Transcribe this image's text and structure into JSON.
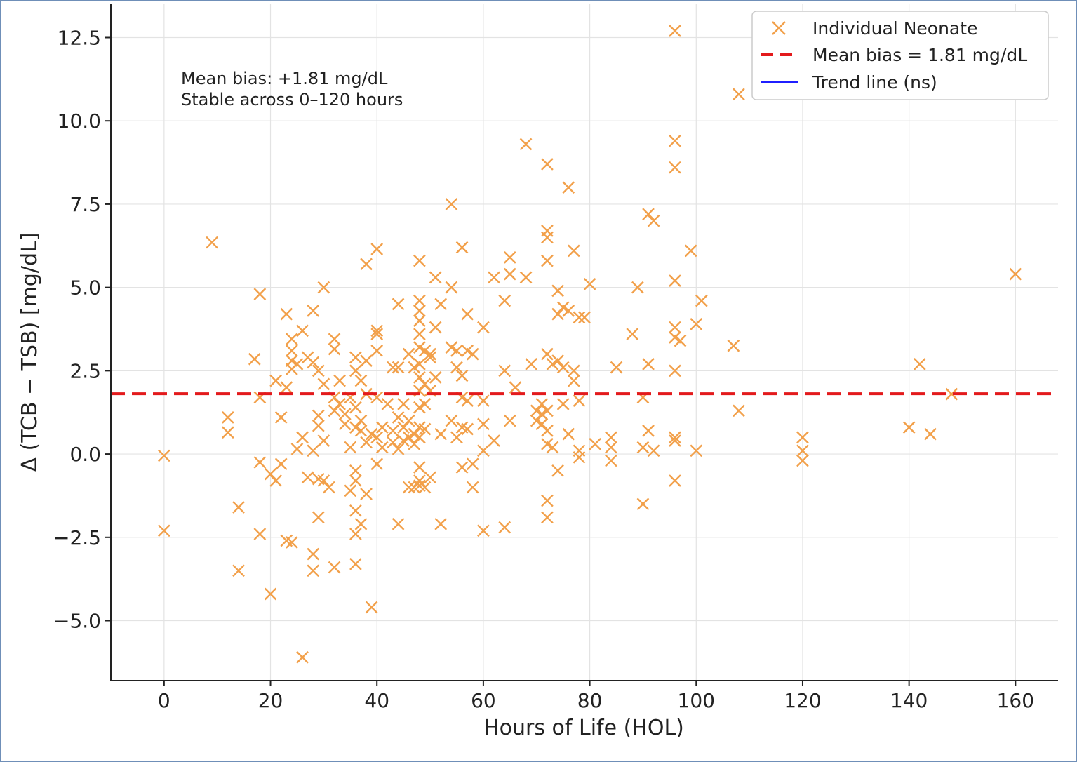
{
  "chart_data": {
    "type": "scatter",
    "title": "",
    "xlabel": "Hours of Life (HOL)",
    "ylabel": "Δ (TCB − TSB) [mg/dL]",
    "xlim": [
      -10,
      168
    ],
    "ylim": [
      -6.8,
      13.5
    ],
    "xticks": [
      0,
      20,
      40,
      60,
      80,
      100,
      120,
      140,
      160
    ],
    "xtick_labels": [
      "0",
      "20",
      "40",
      "60",
      "80",
      "100",
      "120",
      "140",
      "160"
    ],
    "yticks": [
      -5.0,
      -2.5,
      0.0,
      2.5,
      5.0,
      7.5,
      10.0,
      12.5
    ],
    "ytick_labels": [
      "−5.0",
      "−2.5",
      "0.0",
      "2.5",
      "5.0",
      "7.5",
      "10.0",
      "12.5"
    ],
    "grid": true,
    "mean_bias": 1.81,
    "annotation": [
      "Mean bias: +1.81 mg/dL",
      "Stable across 0–120 hours"
    ],
    "legend": {
      "position": "top-right",
      "entries": [
        {
          "label": "Individual Neonate",
          "marker": "x",
          "color": "#f2a04a"
        },
        {
          "label": "Mean bias = 1.81 mg/dL",
          "style": "dashed",
          "color": "#e31a1c"
        },
        {
          "label": "Trend line (ns)",
          "style": "solid",
          "color": "#1f1fff"
        }
      ]
    },
    "series": [
      {
        "name": "Individual Neonate",
        "color": "#f2a04a",
        "points": [
          [
            0,
            -0.05
          ],
          [
            0,
            -2.3
          ],
          [
            9,
            6.35
          ],
          [
            12,
            1.1
          ],
          [
            12,
            0.65
          ],
          [
            14,
            -1.6
          ],
          [
            14,
            -3.5
          ],
          [
            17,
            2.85
          ],
          [
            18,
            4.8
          ],
          [
            18,
            1.7
          ],
          [
            18,
            -0.25
          ],
          [
            18,
            -2.4
          ],
          [
            20,
            -0.6
          ],
          [
            20,
            -4.2
          ],
          [
            21,
            -0.8
          ],
          [
            21,
            2.2
          ],
          [
            22,
            1.1
          ],
          [
            22,
            -0.3
          ],
          [
            23,
            4.2
          ],
          [
            23,
            2.0
          ],
          [
            23,
            -2.6
          ],
          [
            24,
            3.45
          ],
          [
            24,
            3.1
          ],
          [
            24,
            2.8
          ],
          [
            24,
            2.55
          ],
          [
            24,
            -2.65
          ],
          [
            25,
            0.15
          ],
          [
            25,
            2.7
          ],
          [
            26,
            3.7
          ],
          [
            26,
            0.5
          ],
          [
            26,
            -6.1
          ],
          [
            27,
            -0.7
          ],
          [
            27,
            2.9
          ],
          [
            28,
            4.3
          ],
          [
            28,
            2.75
          ],
          [
            28,
            0.1
          ],
          [
            28,
            -3.0
          ],
          [
            28,
            -3.5
          ],
          [
            29,
            2.5
          ],
          [
            29,
            1.15
          ],
          [
            29,
            0.85
          ],
          [
            29,
            -0.75
          ],
          [
            29,
            -1.9
          ],
          [
            30,
            5.0
          ],
          [
            30,
            2.1
          ],
          [
            30,
            0.4
          ],
          [
            30,
            -0.8
          ],
          [
            31,
            -1.0
          ],
          [
            32,
            3.45
          ],
          [
            32,
            3.15
          ],
          [
            32,
            1.7
          ],
          [
            32,
            1.3
          ],
          [
            32,
            -3.4
          ],
          [
            33,
            2.2
          ],
          [
            33,
            1.5
          ],
          [
            34,
            1.2
          ],
          [
            34,
            0.9
          ],
          [
            35,
            1.7
          ],
          [
            35,
            -1.1
          ],
          [
            35,
            0.2
          ],
          [
            36,
            2.9
          ],
          [
            36,
            2.5
          ],
          [
            36,
            1.4
          ],
          [
            36,
            0.8
          ],
          [
            36,
            -0.5
          ],
          [
            36,
            -0.8
          ],
          [
            36,
            -1.7
          ],
          [
            36,
            -2.4
          ],
          [
            36,
            -3.3
          ],
          [
            37,
            2.2
          ],
          [
            37,
            1.0
          ],
          [
            37,
            0.7
          ],
          [
            37,
            -2.1
          ],
          [
            38,
            5.7
          ],
          [
            38,
            2.8
          ],
          [
            38,
            1.8
          ],
          [
            38,
            0.35
          ],
          [
            38,
            -1.2
          ],
          [
            39,
            -4.6
          ],
          [
            39,
            0.6
          ],
          [
            40,
            6.15
          ],
          [
            40,
            3.7
          ],
          [
            40,
            3.6
          ],
          [
            40,
            3.1
          ],
          [
            40,
            1.7
          ],
          [
            40,
            0.5
          ],
          [
            40,
            -0.3
          ],
          [
            41,
            0.8
          ],
          [
            41,
            0.2
          ],
          [
            42,
            1.5
          ],
          [
            43,
            2.6
          ],
          [
            43,
            0.7
          ],
          [
            43,
            0.35
          ],
          [
            44,
            4.5
          ],
          [
            44,
            2.6
          ],
          [
            44,
            1.1
          ],
          [
            44,
            0.15
          ],
          [
            44,
            -2.1
          ],
          [
            45,
            1.5
          ],
          [
            45,
            0.8
          ],
          [
            45,
            0.4
          ],
          [
            46,
            3.0
          ],
          [
            46,
            1.0
          ],
          [
            46,
            0.5
          ],
          [
            46,
            -1.0
          ],
          [
            47,
            2.6
          ],
          [
            47,
            0.6
          ],
          [
            47,
            0.3
          ],
          [
            47,
            -1.0
          ],
          [
            48,
            5.8
          ],
          [
            48,
            4.6
          ],
          [
            48,
            4.3
          ],
          [
            48,
            4.0
          ],
          [
            48,
            3.6
          ],
          [
            48,
            3.2
          ],
          [
            48,
            2.7
          ],
          [
            48,
            2.3
          ],
          [
            48,
            1.9
          ],
          [
            48,
            1.4
          ],
          [
            48,
            0.8
          ],
          [
            48,
            0.5
          ],
          [
            48,
            -0.4
          ],
          [
            48,
            -0.8
          ],
          [
            48,
            -0.95
          ],
          [
            49,
            3.1
          ],
          [
            49,
            2.1
          ],
          [
            49,
            1.5
          ],
          [
            49,
            0.75
          ],
          [
            49,
            -1.0
          ],
          [
            50,
            3.0
          ],
          [
            50,
            2.9
          ],
          [
            50,
            1.9
          ],
          [
            50,
            -0.7
          ],
          [
            51,
            3.8
          ],
          [
            51,
            5.3
          ],
          [
            51,
            2.3
          ],
          [
            52,
            4.5
          ],
          [
            52,
            0.6
          ],
          [
            52,
            -2.1
          ],
          [
            54,
            7.5
          ],
          [
            54,
            5.0
          ],
          [
            54,
            3.2
          ],
          [
            54,
            1.0
          ],
          [
            55,
            3.1
          ],
          [
            55,
            2.6
          ],
          [
            55,
            0.5
          ],
          [
            56,
            6.2
          ],
          [
            56,
            2.35
          ],
          [
            56,
            1.7
          ],
          [
            56,
            0.8
          ],
          [
            56,
            -0.4
          ],
          [
            57,
            4.2
          ],
          [
            57,
            3.1
          ],
          [
            57,
            1.6
          ],
          [
            57,
            0.75
          ],
          [
            58,
            3.0
          ],
          [
            58,
            -0.3
          ],
          [
            58,
            -1.0
          ],
          [
            60,
            3.8
          ],
          [
            60,
            1.6
          ],
          [
            60,
            0.9
          ],
          [
            60,
            0.1
          ],
          [
            60,
            -2.3
          ],
          [
            62,
            5.3
          ],
          [
            62,
            0.4
          ],
          [
            64,
            4.6
          ],
          [
            64,
            2.5
          ],
          [
            64,
            -2.2
          ],
          [
            65,
            5.9
          ],
          [
            65,
            5.4
          ],
          [
            65,
            1.0
          ],
          [
            66,
            2.0
          ],
          [
            68,
            9.3
          ],
          [
            68,
            5.3
          ],
          [
            69,
            2.7
          ],
          [
            70,
            1.3
          ],
          [
            70,
            1.0
          ],
          [
            71,
            1.5
          ],
          [
            71,
            1.2
          ],
          [
            71,
            0.9
          ],
          [
            72,
            8.7
          ],
          [
            72,
            6.7
          ],
          [
            72,
            6.5
          ],
          [
            72,
            5.8
          ],
          [
            72,
            3.0
          ],
          [
            72,
            1.3
          ],
          [
            72,
            0.7
          ],
          [
            72,
            0.3
          ],
          [
            72,
            -1.4
          ],
          [
            72,
            -1.9
          ],
          [
            73,
            2.7
          ],
          [
            73,
            0.2
          ],
          [
            74,
            4.9
          ],
          [
            74,
            4.2
          ],
          [
            74,
            2.8
          ],
          [
            74,
            -0.5
          ],
          [
            75,
            4.4
          ],
          [
            75,
            2.6
          ],
          [
            75,
            1.5
          ],
          [
            76,
            8.0
          ],
          [
            76,
            4.3
          ],
          [
            76,
            0.6
          ],
          [
            77,
            6.1
          ],
          [
            77,
            2.5
          ],
          [
            77,
            2.2
          ],
          [
            78,
            4.1
          ],
          [
            78,
            1.6
          ],
          [
            78,
            0.1
          ],
          [
            78,
            -0.1
          ],
          [
            79,
            4.1
          ],
          [
            80,
            5.1
          ],
          [
            81,
            0.3
          ],
          [
            84,
            0.5
          ],
          [
            84,
            0.2
          ],
          [
            84,
            -0.2
          ],
          [
            85,
            2.6
          ],
          [
            88,
            3.6
          ],
          [
            89,
            5.0
          ],
          [
            90,
            1.7
          ],
          [
            90,
            0.2
          ],
          [
            90,
            -1.5
          ],
          [
            91,
            7.2
          ],
          [
            91,
            2.7
          ],
          [
            91,
            0.7
          ],
          [
            92,
            7.0
          ],
          [
            92,
            0.1
          ],
          [
            96,
            12.7
          ],
          [
            96,
            9.4
          ],
          [
            96,
            8.6
          ],
          [
            96,
            5.2
          ],
          [
            96,
            3.8
          ],
          [
            96,
            3.5
          ],
          [
            96,
            2.5
          ],
          [
            96,
            0.5
          ],
          [
            96,
            0.4
          ],
          [
            96,
            -0.8
          ],
          [
            97,
            3.4
          ],
          [
            99,
            6.1
          ],
          [
            100,
            3.9
          ],
          [
            100,
            0.1
          ],
          [
            101,
            4.6
          ],
          [
            107,
            3.25
          ],
          [
            108,
            10.8
          ],
          [
            108,
            1.3
          ],
          [
            120,
            0.5
          ],
          [
            120,
            0.1
          ],
          [
            120,
            -0.2
          ],
          [
            140,
            0.8
          ],
          [
            142,
            2.7
          ],
          [
            144,
            0.6
          ],
          [
            148,
            1.8
          ],
          [
            160,
            5.4
          ]
        ]
      }
    ]
  }
}
